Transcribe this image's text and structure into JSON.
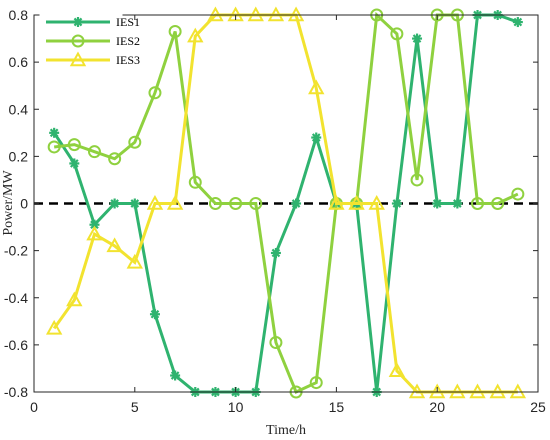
{
  "chart_data": {
    "type": "line",
    "title": "",
    "xlabel": "Time/h",
    "ylabel": "Power/MW",
    "xlim": [
      0,
      25
    ],
    "ylim": [
      -0.8,
      0.8
    ],
    "xticks": [
      0,
      5,
      10,
      15,
      20,
      25
    ],
    "yticks": [
      -0.8,
      -0.6,
      -0.4,
      -0.2,
      0,
      0.2,
      0.4,
      0.6,
      0.8
    ],
    "xtick_labels": [
      "0",
      "5",
      "10",
      "15",
      "20",
      "25"
    ],
    "ytick_labels": [
      "-0.8",
      "-0.6",
      "-0.4",
      "-0.2",
      "0",
      "0.2",
      "0.4",
      "0.6",
      "0.8"
    ],
    "grid": false,
    "legend_position": "top-left",
    "reference_line": {
      "y": 0,
      "style": "dashed",
      "color": "#000000"
    },
    "x": [
      1,
      2,
      3,
      4,
      5,
      6,
      7,
      8,
      9,
      10,
      11,
      12,
      13,
      14,
      15,
      16,
      17,
      18,
      19,
      20,
      21,
      22,
      23,
      24
    ],
    "series": [
      {
        "name": "IES1",
        "marker": "asterisk",
        "color": "#2fb36f",
        "values": [
          0.3,
          0.17,
          -0.09,
          0.0,
          0.0,
          -0.47,
          -0.73,
          -0.8,
          -0.8,
          -0.8,
          -0.8,
          -0.21,
          0.0,
          0.28,
          0.0,
          0.0,
          -0.8,
          0.0,
          0.7,
          0.0,
          0.0,
          0.8,
          0.8,
          0.77
        ]
      },
      {
        "name": "IES2",
        "marker": "circle",
        "color": "#8fd13f",
        "values": [
          0.24,
          0.25,
          0.22,
          0.19,
          0.26,
          0.47,
          0.73,
          0.09,
          0.0,
          0.0,
          0.0,
          -0.59,
          -0.8,
          -0.76,
          0.0,
          0.0,
          0.8,
          0.72,
          0.1,
          0.8,
          0.8,
          0.0,
          0.0,
          0.04
        ]
      },
      {
        "name": "IES3",
        "marker": "triangle",
        "color": "#f2e32f",
        "values": [
          -0.53,
          -0.41,
          -0.13,
          -0.18,
          -0.25,
          0.0,
          0.0,
          0.71,
          0.8,
          0.8,
          0.8,
          0.8,
          0.8,
          0.49,
          0.0,
          0.0,
          0.0,
          -0.71,
          -0.8,
          -0.8,
          -0.8,
          -0.8,
          -0.8,
          -0.8
        ]
      }
    ]
  }
}
